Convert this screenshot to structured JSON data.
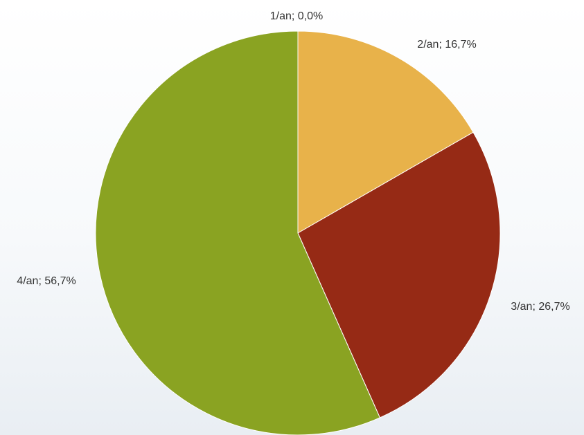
{
  "chart_data": {
    "type": "pie",
    "title": "",
    "categories": [
      "1/an",
      "2/an",
      "3/an",
      "4/an"
    ],
    "values": [
      0.0,
      16.7,
      26.7,
      56.7
    ],
    "labels": [
      "1/an; 0,0%",
      "2/an; 16,7%",
      "3/an; 26,7%",
      "4/an; 56,7%"
    ],
    "colors": [
      "#5b8fc9",
      "#e8b24a",
      "#962a15",
      "#8aa322"
    ],
    "start_angle_deg": 0,
    "direction": "clockwise",
    "legend": "none"
  }
}
